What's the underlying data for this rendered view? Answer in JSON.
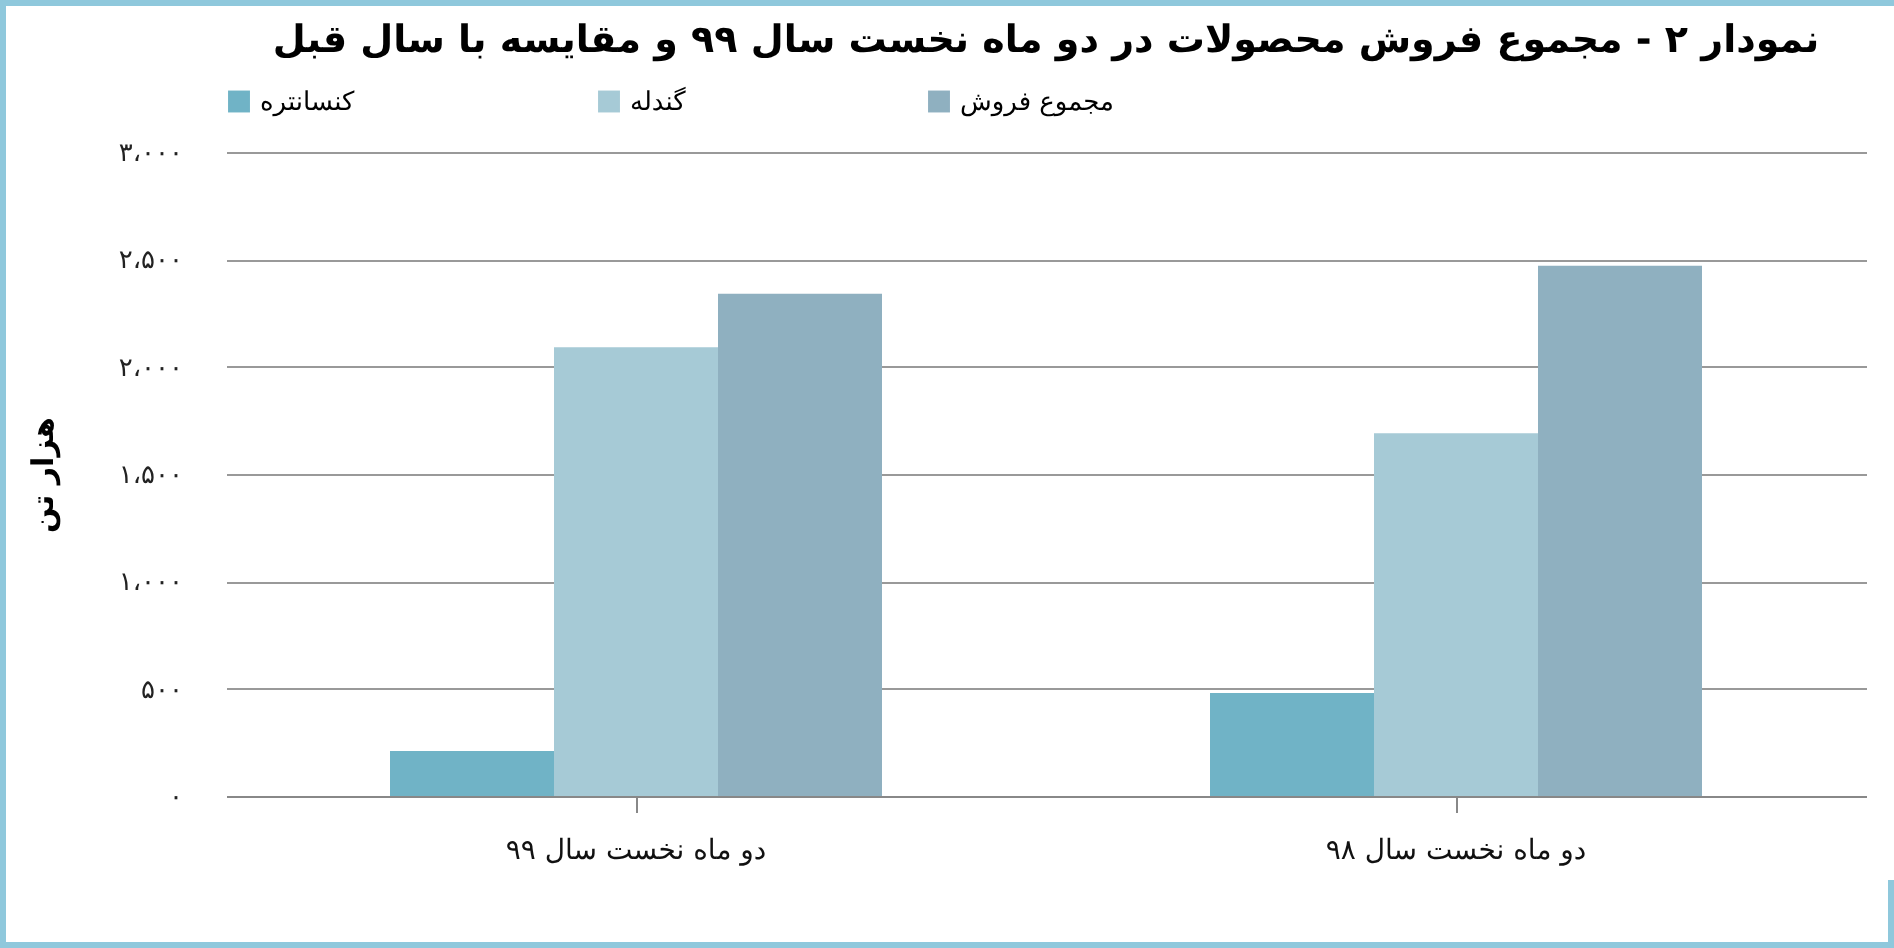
{
  "chart_data": {
    "type": "bar",
    "title": "نمودار ۲ - مجموع فروش محصولات در دو ماه نخست سال ۹۹ و مقایسه با سال قبل",
    "ylabel": "هزار تن",
    "categories": [
      "دو ماه نخست سال ۹۹",
      "دو ماه نخست سال ۹۸"
    ],
    "series": [
      {
        "name": "کنسانتره",
        "color": "#70b3c6",
        "values": [
          210,
          480
        ]
      },
      {
        "name": "گندله",
        "color": "#a6cad6",
        "values": [
          2090,
          1690
        ]
      },
      {
        "name": "مجموع فروش",
        "color": "#8fb0c0",
        "values": [
          2340,
          2470
        ]
      }
    ],
    "ylim": [
      0,
      3000
    ],
    "yticks": [
      {
        "value": 0,
        "label": "۰"
      },
      {
        "value": 500,
        "label": "۵۰۰"
      },
      {
        "value": 1000,
        "label": "۱،۰۰۰"
      },
      {
        "value": 1500,
        "label": "۱،۵۰۰"
      },
      {
        "value": 2000,
        "label": "۲،۰۰۰"
      },
      {
        "value": 2500,
        "label": "۲،۵۰۰"
      },
      {
        "value": 3000,
        "label": "۳،۰۰۰"
      }
    ],
    "grid": "y",
    "legend": "top"
  }
}
